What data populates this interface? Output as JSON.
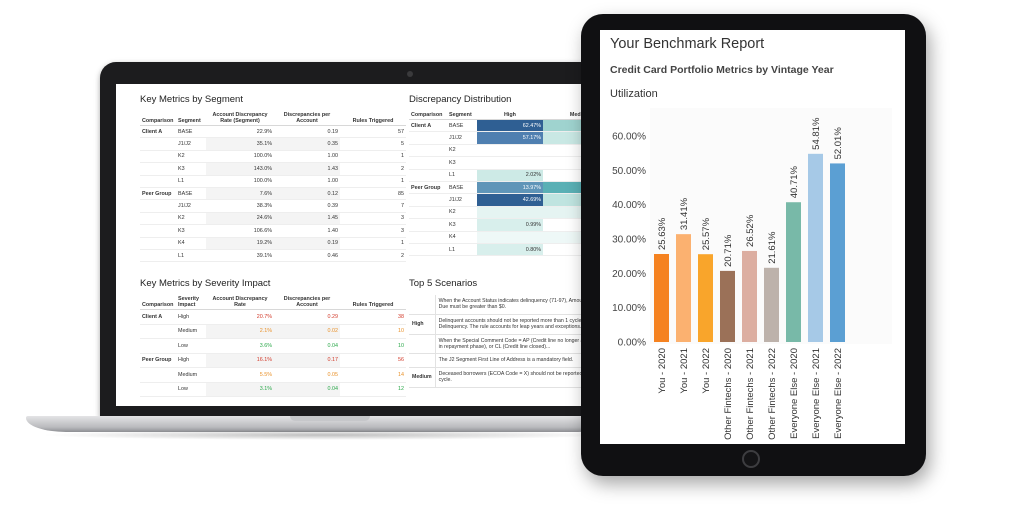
{
  "laptop": {
    "segment": {
      "title": "Key Metrics by Segment",
      "headers": [
        "Comparison",
        "Segment",
        "Account Discrepancy Rate (Segment)",
        "Discrepancies per Account",
        "Rules Triggered"
      ],
      "rows": [
        {
          "group": "Client A",
          "segment": "BASE",
          "rate": "22.9%",
          "per": "0.19",
          "rules": "57"
        },
        {
          "group": "",
          "segment": "J1/J2",
          "rate": "35.1%",
          "per": "0.35",
          "rules": "5"
        },
        {
          "group": "",
          "segment": "K2",
          "rate": "100.0%",
          "per": "1.00",
          "rules": "1"
        },
        {
          "group": "",
          "segment": "K3",
          "rate": "143.0%",
          "per": "1.43",
          "rules": "2"
        },
        {
          "group": "",
          "segment": "L1",
          "rate": "100.0%",
          "per": "1.00",
          "rules": "1"
        },
        {
          "group": "Peer Group",
          "segment": "BASE",
          "rate": "7.6%",
          "per": "0.12",
          "rules": "85"
        },
        {
          "group": "",
          "segment": "J1/J2",
          "rate": "38.3%",
          "per": "0.39",
          "rules": "7"
        },
        {
          "group": "",
          "segment": "K2",
          "rate": "24.6%",
          "per": "1.45",
          "rules": "3"
        },
        {
          "group": "",
          "segment": "K3",
          "rate": "106.6%",
          "per": "1.40",
          "rules": "3"
        },
        {
          "group": "",
          "segment": "K4",
          "rate": "19.2%",
          "per": "0.19",
          "rules": "1"
        },
        {
          "group": "",
          "segment": "L1",
          "rate": "39.1%",
          "per": "0.46",
          "rules": "2"
        }
      ]
    },
    "distribution": {
      "title": "Discrepancy Distribution",
      "headers": [
        "Comparison",
        "Segment",
        "High",
        "Medi"
      ],
      "rows": [
        {
          "group": "Client A",
          "segment": "BASE",
          "high": "62.47%",
          "high_frac": 1.0,
          "tone": "#2f5f93",
          "med_tone": "#9fd3cf"
        },
        {
          "group": "",
          "segment": "J1/J2",
          "high": "57.17%",
          "high_frac": 1.0,
          "tone": "#4f7fb0",
          "med_tone": "#c9e8e4"
        },
        {
          "group": "",
          "segment": "K2",
          "high": "",
          "high_frac": 0,
          "tone": "#ffffff",
          "med_tone": "#ffffff"
        },
        {
          "group": "",
          "segment": "K3",
          "high": "",
          "high_frac": 0,
          "tone": "#ffffff",
          "med_tone": "#ffffff"
        },
        {
          "group": "",
          "segment": "L1",
          "high": "2.02%",
          "high_frac": 1.0,
          "tone": "#cdeae6",
          "med_tone": "#ffffff"
        },
        {
          "group": "Peer Group",
          "segment": "BASE",
          "high": "13.97%",
          "high_frac": 1.0,
          "tone": "#5f95b8",
          "med_tone": "#5ab0b5"
        },
        {
          "group": "",
          "segment": "J1/J2",
          "high": "42.69%",
          "high_frac": 1.0,
          "tone": "#2f5f93",
          "med_tone": "#bfe4e0"
        },
        {
          "group": "",
          "segment": "K2",
          "high": "",
          "high_frac": 1.0,
          "tone": "#e5f4f2",
          "med_tone": "#e5f4f2"
        },
        {
          "group": "",
          "segment": "K3",
          "high": "0.99%",
          "high_frac": 1.0,
          "tone": "#d8efec",
          "med_tone": "#ffffff"
        },
        {
          "group": "",
          "segment": "K4",
          "high": "",
          "high_frac": 1.0,
          "tone": "#eef8f7",
          "med_tone": "#eef8f7"
        },
        {
          "group": "",
          "segment": "L1",
          "high": "0.80%",
          "high_frac": 1.0,
          "tone": "#d8efec",
          "med_tone": "#ffffff"
        }
      ]
    },
    "severity": {
      "title": "Key Metrics by Severity Impact",
      "headers": [
        "Comparison",
        "Severity Impact",
        "Account Discrepancy Rate",
        "Discrepancies per Account",
        "Rules Triggered"
      ],
      "rows": [
        {
          "group": "Client A",
          "sev": "High",
          "rate": "20.7%",
          "per": "0.29",
          "rules": "38",
          "cls": "red"
        },
        {
          "group": "",
          "sev": "Medium",
          "rate": "2.1%",
          "per": "0.02",
          "rules": "10",
          "cls": "orange"
        },
        {
          "group": "",
          "sev": "Low",
          "rate": "3.6%",
          "per": "0.04",
          "rules": "10",
          "cls": "green"
        },
        {
          "group": "Peer Group",
          "sev": "High",
          "rate": "16.1%",
          "per": "0.17",
          "rules": "56",
          "cls": "red"
        },
        {
          "group": "",
          "sev": "Medium",
          "rate": "5.5%",
          "per": "0.05",
          "rules": "14",
          "cls": "orange"
        },
        {
          "group": "",
          "sev": "Low",
          "rate": "3.1%",
          "per": "0.04",
          "rules": "12",
          "cls": "green"
        }
      ]
    },
    "scenarios": {
      "title": "Top 5 Scenarios",
      "rows": [
        {
          "sev": "",
          "text": "When the Account Status indicates delinquency (71-97), Amount Past Due must be greater than $0."
        },
        {
          "sev": "High",
          "text": "Delinquent accounts should not be reported more than 1 cycle of Delinquency. The rule accounts for leap years and exceptions."
        },
        {
          "sev": "",
          "text": "When the Special Comment Code = AP (Credit line no longer available - in repayment phase), or CL (Credit line closed)..."
        },
        {
          "sev": "",
          "text": "The J2 Segment First Line of Address is a mandatory field."
        },
        {
          "sev": "Medium",
          "text": "Deceased borrowers (ECOA Code = X) should not be reported past cycle."
        }
      ]
    }
  },
  "tablet": {
    "title": "Your Benchmark Report",
    "subtitle": "Credit Card Portfolio Metrics by Vintage Year",
    "metric": "Utilization"
  },
  "chart_data": {
    "type": "bar",
    "title": "Utilization",
    "categories": [
      "You - 2020",
      "You - 2021",
      "You - 2022",
      "Other Fintechs - 2020",
      "Other Fintechs - 2021",
      "Other Fintechs - 2022",
      "Everyone Else - 2020",
      "Everyone Else - 2021",
      "Everyone Else - 2022"
    ],
    "values": [
      25.63,
      31.41,
      25.57,
      20.71,
      26.52,
      21.61,
      40.71,
      54.81,
      52.01
    ],
    "labels": [
      "25.63%",
      "31.41%",
      "25.57%",
      "20.71%",
      "26.52%",
      "21.61%",
      "40.71%",
      "54.81%",
      "52.01%"
    ],
    "colors": [
      "#f58220",
      "#fbb170",
      "#f9a52b",
      "#9b7158",
      "#dcaea1",
      "#bdb2ab",
      "#78b9a8",
      "#a6c9e7",
      "#5b9fd3"
    ],
    "yticks": [
      "0.00%",
      "10.00%",
      "20.00%",
      "30.00%",
      "40.00%",
      "50.00%",
      "60.00%"
    ],
    "ylim": [
      0,
      60
    ],
    "grid": false
  }
}
